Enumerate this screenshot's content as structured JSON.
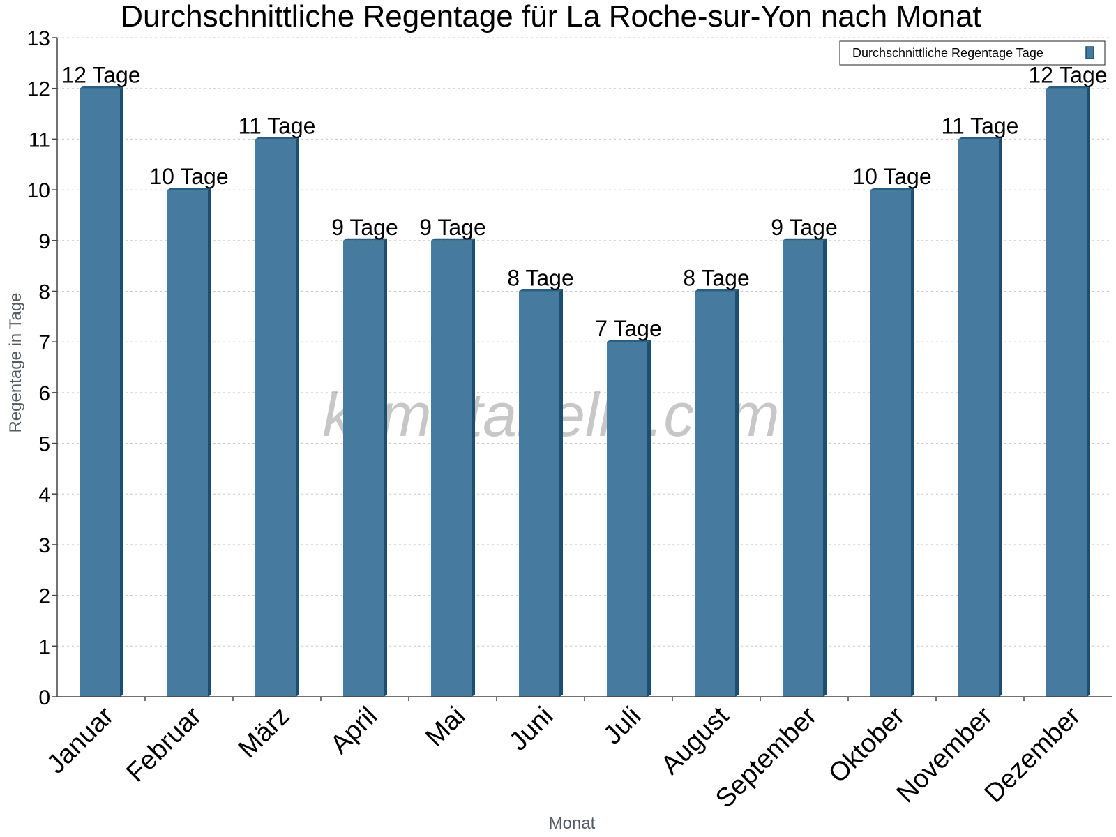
{
  "watermark": "klimatabelle.com",
  "colors": {
    "bar_front": "#467a9e",
    "bar_side": "#1d4e6f",
    "bar_top": "#2a5f84"
  },
  "chart_data": {
    "type": "bar",
    "title": "Durchschnittliche Regentage für La Roche-sur-Yon nach Monat",
    "xlabel": "Monat",
    "ylabel": "Regentage in Tage",
    "ylim": [
      0,
      13
    ],
    "yticks": [
      0,
      1,
      2,
      3,
      4,
      5,
      6,
      7,
      8,
      9,
      10,
      11,
      12,
      13
    ],
    "grid": true,
    "legend_position": "top-right",
    "categories": [
      "Januar",
      "Februar",
      "März",
      "April",
      "Mai",
      "Juni",
      "Juli",
      "August",
      "September",
      "Oktober",
      "November",
      "Dezember"
    ],
    "series": [
      {
        "name": "Durchschnittliche Regentage Tage",
        "values": [
          12,
          10,
          11,
          9,
          9,
          8,
          7,
          8,
          9,
          10,
          11,
          12
        ],
        "data_labels": [
          "12 Tage",
          "10 Tage",
          "11 Tage",
          "9 Tage",
          "9 Tage",
          "8 Tage",
          "7 Tage",
          "8 Tage",
          "9 Tage",
          "10 Tage",
          "11 Tage",
          "12 Tage"
        ]
      }
    ]
  }
}
